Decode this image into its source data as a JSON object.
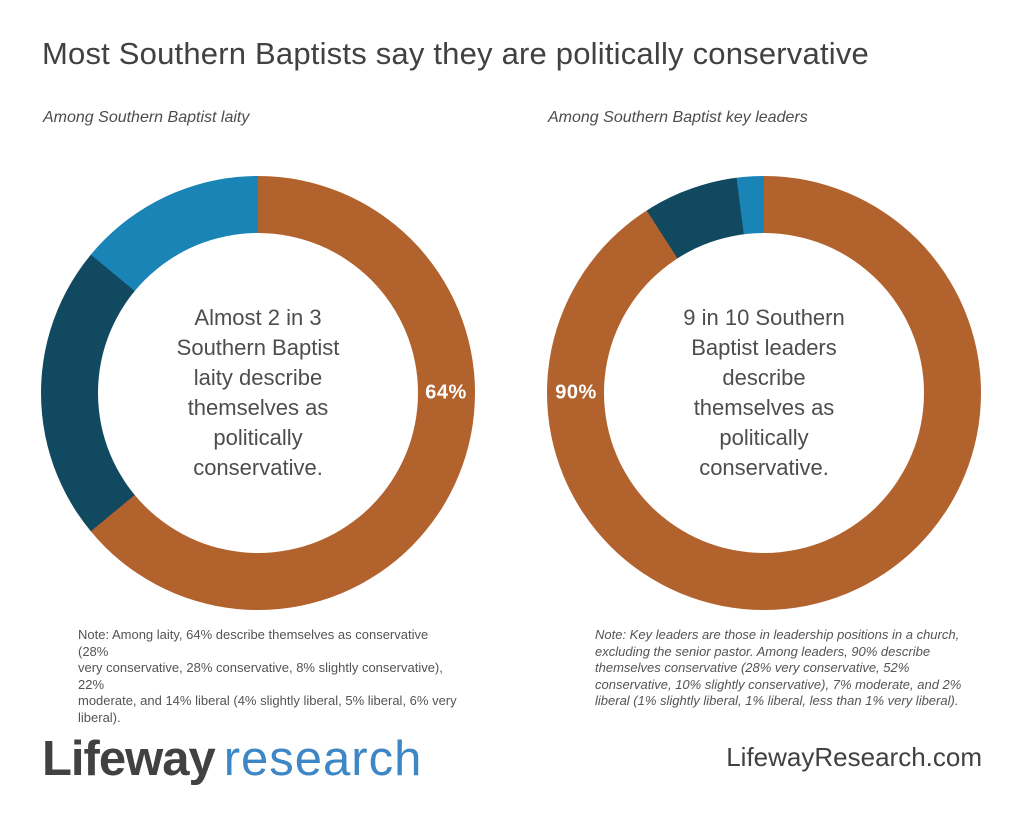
{
  "title": "Most Southern Baptists say they are politically conservative",
  "colors": {
    "conservative_orange": "#b2622d",
    "moderate_dark_teal": "#114a60",
    "liberal_light_blue": "#1984b5",
    "heading_gray": "#414042",
    "body_gray": "#4d4d4f",
    "note_gray": "#545456",
    "logo_dark": "#414042",
    "logo_blue": "#3d87c6",
    "label_white": "#ffffff"
  },
  "chart_data": [
    {
      "type": "pie",
      "variant": "donut",
      "title": "Among Southern Baptist laity",
      "categories": [
        "Conservative",
        "Moderate",
        "Liberal"
      ],
      "values": [
        64,
        22,
        14
      ],
      "slice_colors": [
        "#b2622d",
        "#114a60",
        "#1984b5"
      ],
      "start_angle_deg": 0,
      "direction": "clockwise",
      "data_label": "64%",
      "data_label_slice": "Conservative",
      "data_label_position": "right-mid-ring",
      "center_text": "Almost 2 in 3\nSouthern Baptist\nlaity describe\nthemselves as\npolitically\nconservative.",
      "note": "Note: Among laity, 64% describe themselves as conservative (28%\nvery conservative, 28% conservative, 8% slightly conservative), 22%\nmoderate, and 14% liberal (4% slightly liberal, 5% liberal, 6% very\nliberal).",
      "breakdown": {
        "very conservative": 28,
        "conservative": 28,
        "slightly conservative": 8,
        "moderate": 22,
        "slightly liberal": 4,
        "liberal": 5,
        "very liberal": 6
      }
    },
    {
      "type": "pie",
      "variant": "donut",
      "title": "Among Southern Baptist key leaders",
      "categories": [
        "Conservative",
        "Moderate",
        "Liberal"
      ],
      "values": [
        90,
        7,
        2
      ],
      "slice_colors": [
        "#b2622d",
        "#114a60",
        "#1984b5"
      ],
      "start_angle_deg": 0,
      "direction": "clockwise",
      "data_label": "90%",
      "data_label_slice": "Conservative",
      "data_label_position": "left-mid-ring",
      "center_text": "9 in 10 Southern\nBaptist leaders\ndescribe\nthemselves as\npolitically\nconservative.",
      "note": "Note: Key leaders are those in leadership positions in a church,\nexcluding the senior pastor. Among leaders, 90% describe\nthemselves conservative (28% very conservative, 52%\nconservative, 10% slightly conservative), 7% moderate, and 2%\nliberal (1% slightly liberal, 1% liberal, less than 1% very liberal).",
      "breakdown": {
        "very conservative": 28,
        "conservative": 52,
        "slightly conservative": 10,
        "moderate": 7,
        "slightly liberal": 1,
        "liberal": 1,
        "very liberal": "less than 1"
      }
    }
  ],
  "footer": {
    "logo": {
      "primary": "Lifeway",
      "secondary": "research"
    },
    "website": "LifewayResearch.com"
  }
}
